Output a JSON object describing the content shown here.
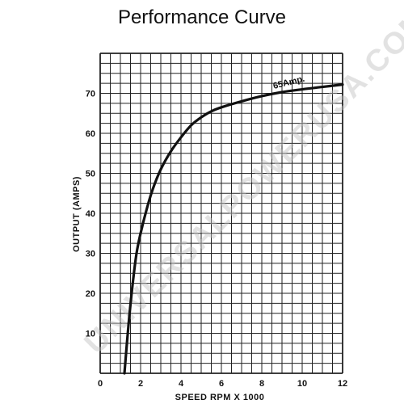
{
  "colors": {
    "grid": "#222222",
    "curve": "#111111",
    "text": "#111111",
    "watermark": "#bfbfbf"
  },
  "chart_data": {
    "type": "line",
    "title": "Performance Curve",
    "xlabel": "SPEED RPM X 1000",
    "ylabel": "OUTPUT (AMPS)",
    "xlim": [
      0,
      12
    ],
    "ylim": [
      0,
      80
    ],
    "x_ticks": [
      0,
      2,
      4,
      6,
      8,
      10,
      12
    ],
    "y_ticks": [
      10,
      20,
      30,
      40,
      50,
      60,
      70
    ],
    "x_minor_step": 0.5,
    "y_minor_step": 2.5,
    "grid": true,
    "annotation": {
      "text": "65Amp.",
      "x": 8.6,
      "y": 70.3
    },
    "watermark": "UNIVERSALPOWERUSA.COM",
    "series": [
      {
        "x": [
          1.2,
          1.4,
          1.6,
          1.8,
          2.0,
          2.3,
          2.6,
          3.0,
          3.5,
          4.0,
          4.5,
          5.0,
          5.5,
          6.0,
          7.0,
          8.0,
          9.0,
          10.0,
          11.0,
          12.0
        ],
        "values": [
          0,
          12,
          22,
          30,
          35,
          41,
          46,
          51,
          55.5,
          59,
          62,
          64,
          65.5,
          66.5,
          68,
          69.3,
          70.3,
          71,
          71.6,
          72.2
        ]
      }
    ]
  }
}
